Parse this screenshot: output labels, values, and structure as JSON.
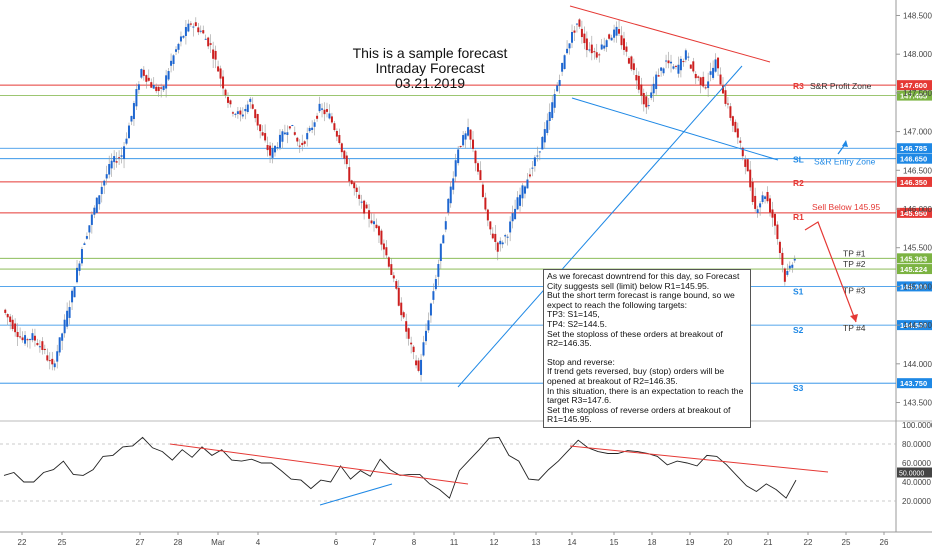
{
  "title_lines": [
    "This is a sample forecast",
    "Intraday Forecast",
    "03.21.2019"
  ],
  "annotation": {
    "p1": "As we forecast downtrend for this day, so Forecast City suggests sell (limit) below R1=145.95.",
    "p2": "But the short term forecast is range bound, so we expect to reach the following targets:",
    "p3": "TP3: S1=145,",
    "p4": "TP4: S2=144.5.",
    "p5": "Set the stoploss of these orders at breakout of R2=146.35.",
    "p6": "Stop and reverse:",
    "p7": "If trend gets reversed, buy (stop) orders will be opened at breakout of R2=146.35.",
    "p8": "In this situation, there is an expectation to reach the target R3=147.6.",
    "p9": "Set the stoploss of reverse orders at breakout of R1=145.95."
  },
  "chart_data": [
    {
      "type": "line",
      "ylim": [
        143.3,
        148.7
      ],
      "price_ticks": [
        "148.500",
        "148.000",
        "147.500",
        "147.000",
        "146.500",
        "146.000",
        "145.500",
        "145.000",
        "144.500",
        "144.000",
        "143.500"
      ],
      "x_tick_labels": [
        "22",
        "25",
        "27",
        "28",
        "Mar",
        "4",
        "6",
        "7",
        "8",
        "11",
        "12",
        "13",
        "14",
        "15",
        "18",
        "19",
        "20",
        "21",
        "22",
        "25",
        "26"
      ],
      "levels": [
        {
          "label": "R3",
          "value": 147.6,
          "color": "#e53935",
          "tag": "147.600",
          "note": "S&R Profit Zone"
        },
        {
          "label": "",
          "value": 147.465,
          "color": "#7cb342",
          "tag": "147.465",
          "note": ""
        },
        {
          "label": "",
          "value": 146.785,
          "color": "#1e88e5",
          "tag": "146.785",
          "note": ""
        },
        {
          "label": "SL",
          "value": 146.65,
          "color": "#1e88e5",
          "tag": "146.650",
          "note": "S&R Entry Zone"
        },
        {
          "label": "R2",
          "value": 146.35,
          "color": "#e53935",
          "tag": "146.350",
          "note": ""
        },
        {
          "label": "R1",
          "value": 145.95,
          "color": "#e53935",
          "tag": "145.950",
          "note": "Sell Below 145.95"
        },
        {
          "label": "TP #1",
          "value": 145.363,
          "color": "#7cb342",
          "tag": "145.363",
          "note": ""
        },
        {
          "label": "TP #2",
          "value": 145.224,
          "color": "#7cb342",
          "tag": "145.224",
          "note": ""
        },
        {
          "label": "S1",
          "value": 145.0,
          "color": "#1e88e5",
          "tag": "145.000",
          "note": "TP #3"
        },
        {
          "label": "S2",
          "value": 144.5,
          "color": "#1e88e5",
          "tag": "144.500",
          "note": "TP #4"
        },
        {
          "label": "S3",
          "value": 143.75,
          "color": "#1e88e5",
          "tag": "143.750",
          "note": ""
        }
      ],
      "price_path": [
        144.7,
        144.5,
        144.3,
        144.35,
        144.2,
        143.95,
        144.4,
        144.9,
        145.5,
        145.9,
        146.3,
        146.6,
        146.7,
        147.2,
        147.8,
        147.6,
        147.5,
        147.9,
        148.2,
        148.4,
        148.3,
        148.1,
        147.7,
        147.3,
        147.2,
        147.4,
        147.0,
        146.7,
        146.9,
        147.1,
        146.8,
        147.0,
        147.3,
        147.2,
        146.9,
        146.4,
        146.1,
        145.9,
        145.7,
        145.3,
        144.8,
        144.3,
        143.9,
        144.6,
        145.3,
        146.1,
        146.8,
        147.0,
        146.5,
        145.8,
        145.5,
        145.7,
        146.1,
        146.4,
        146.7,
        147.1,
        147.6,
        148.1,
        148.4,
        148.1,
        148.0,
        148.2,
        148.3,
        148.0,
        147.7,
        147.3,
        147.7,
        147.9,
        147.8,
        148.0,
        147.7,
        147.6,
        147.9,
        147.4,
        147.0,
        146.6,
        146.0,
        146.2,
        145.8,
        145.1,
        145.4
      ]
    },
    {
      "type": "line",
      "ylim": [
        0,
        100
      ],
      "ticks": [
        "100.0000",
        "80.0000",
        "60.0000",
        "50.0000",
        "40.0000",
        "20.0000"
      ],
      "values": [
        45,
        52,
        38,
        42,
        48,
        55,
        60,
        50,
        45,
        55,
        65,
        70,
        75,
        80,
        85,
        78,
        70,
        65,
        72,
        68,
        75,
        70,
        72,
        65,
        60,
        66,
        58,
        62,
        50,
        45,
        40,
        35,
        40,
        42,
        55,
        45,
        50,
        48,
        62,
        55,
        45,
        50,
        46,
        40,
        30,
        25,
        50,
        65,
        72,
        88,
        85,
        70,
        60,
        45,
        40,
        55,
        60,
        75,
        82,
        78,
        70,
        72,
        68,
        75,
        70,
        72,
        65,
        60,
        60,
        62,
        55,
        70,
        65,
        60,
        45,
        38,
        28,
        40,
        30,
        25,
        40
      ]
    }
  ]
}
